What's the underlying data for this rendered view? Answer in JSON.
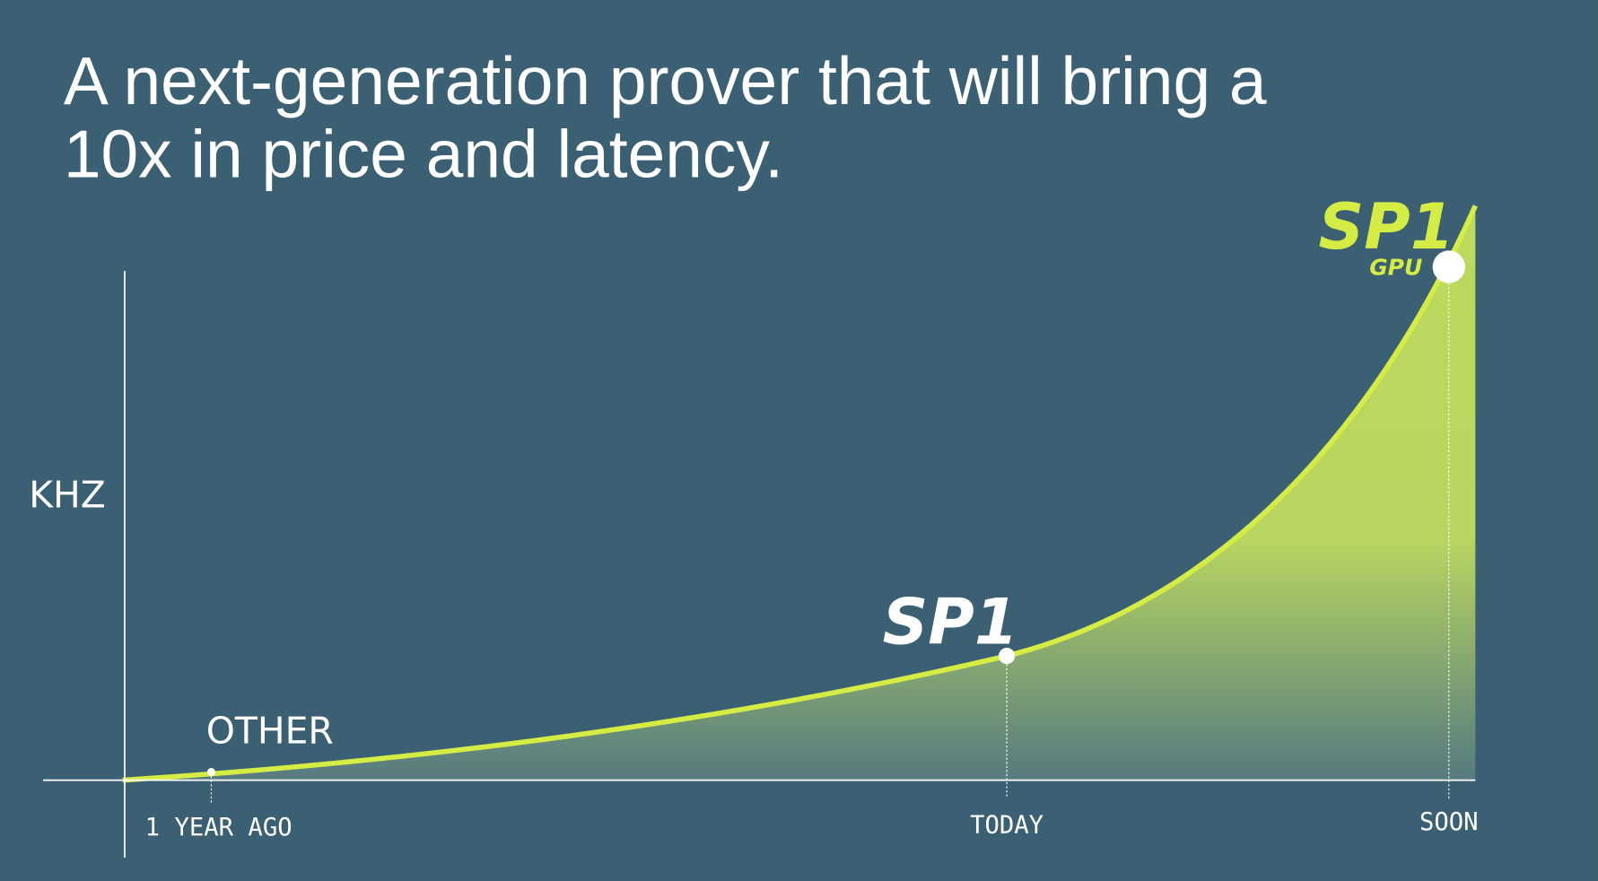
{
  "header": {
    "title_lines": [
      "A next-generation prover that will bring a",
      "10x in price and latency."
    ]
  },
  "chart": {
    "y_axis_label": "KHZ",
    "points": [
      {
        "label": "OTHER"
      },
      {
        "label": "SP1"
      },
      {
        "label": "SP1",
        "sublabel": "GPU"
      }
    ],
    "x_labels": [
      "1 YEAR AGO",
      "TODAY",
      "SOON"
    ]
  }
}
